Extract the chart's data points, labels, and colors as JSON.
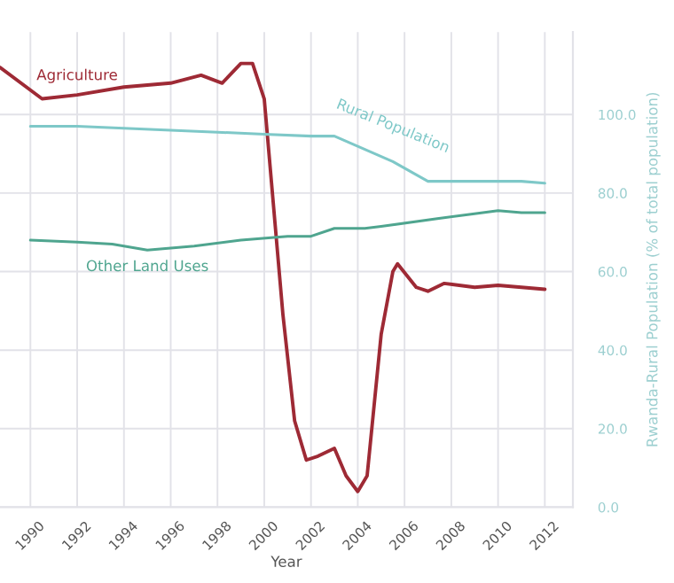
{
  "chart_data": {
    "type": "line",
    "xlabel": "Year",
    "ylabel": "Rwanda-Rural Population (% of total population)",
    "series": [
      {
        "name": "Agriculture",
        "color": "#9e2a35",
        "x": [
          1988.7,
          1990.5,
          1992,
          1994,
          1996,
          1997.3,
          1998.2,
          1999,
          1999.5,
          2000,
          2000.8,
          2001.3,
          2001.8,
          2002.3,
          2003,
          2003.5,
          2004,
          2004.4,
          2005,
          2005.5,
          2005.7,
          2006.5,
          2007,
          2007.7,
          2009,
          2010,
          2011,
          2012
        ],
        "values": [
          112,
          104,
          105,
          107,
          108,
          110,
          108,
          113,
          113,
          104,
          49,
          22,
          12,
          13,
          15,
          8,
          4,
          8,
          44,
          60,
          62,
          56,
          55,
          57,
          56,
          56.5,
          56,
          55.5
        ]
      },
      {
        "name": "Rural Population",
        "color": "#7ec8c8",
        "x": [
          1990,
          1992,
          1994,
          1996,
          1998,
          2000,
          2002,
          2003,
          2005.5,
          2007,
          2011,
          2012
        ],
        "values": [
          97,
          97,
          96.5,
          96,
          95.5,
          95,
          94.5,
          94.5,
          88,
          83,
          83,
          82.5
        ]
      },
      {
        "name": "Other Land Uses",
        "color": "#4fa58f",
        "x": [
          1990,
          1992,
          1993.5,
          1995,
          1997,
          1999,
          2001,
          2002,
          2003,
          2004.3,
          2005,
          2007.4,
          2008.7,
          2010,
          2011,
          2012
        ],
        "values": [
          68,
          67.5,
          67,
          65.5,
          66.5,
          68,
          69,
          69,
          71,
          71,
          71.5,
          73.5,
          74.5,
          75.5,
          75,
          75
        ]
      }
    ],
    "xlim": [
      1988.7,
      2013.2
    ],
    "xticks": [
      1990,
      1992,
      1994,
      1996,
      1998,
      2000,
      2002,
      2004,
      2006,
      2008,
      2010,
      2012
    ],
    "ylim": [
      0,
      121
    ],
    "yticks": [
      {
        "value": 0,
        "label": "0.0"
      },
      {
        "value": 20,
        "label": "20.0"
      },
      {
        "value": 40,
        "label": "40.0"
      },
      {
        "value": 60,
        "label": "60.0"
      },
      {
        "value": 80,
        "label": "80.0"
      },
      {
        "value": 100,
        "label": "100.0"
      }
    ],
    "grid": true,
    "legend": false
  }
}
